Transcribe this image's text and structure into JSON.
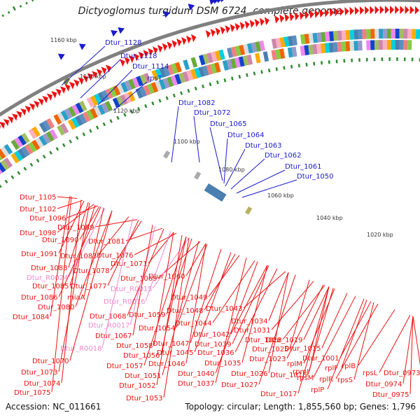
{
  "title": "Dictyoglomus turgidum DSM 6724, complete genome",
  "footer": {
    "accession": "Accession: NC_011661",
    "topology": "Topology: circular; Length: 1,855,560 bp; Genes: 1,796"
  },
  "colors": {
    "forward_label": "#1a1acc",
    "reverse_label": "#ee1111",
    "rna_label": "#ee88cc",
    "backbone": "#808080",
    "ticks": "#2e8b2e",
    "cds_reverse": "#ee1111",
    "cds_forward": "#1a1acc"
  },
  "scale_labels": [
    "1160 kbp",
    "1140 kbp",
    "1120 kbp",
    "1100 kbp",
    "1080 kbp",
    "1060 kbp",
    "1040 kbp",
    "1020 kbp"
  ],
  "forward_genes": [
    "Dtur_1128",
    "Dtur_1118",
    "Dtur_1114",
    "rpsT",
    "Dtur_1082",
    "Dtur_1072",
    "Dtur_1065",
    "Dtur_1064",
    "Dtur_1063",
    "Dtur_1062",
    "Dtur_1061",
    "Dtur_1050"
  ],
  "reverse_genes": [
    "Dtur_1105",
    "Dtur_1102",
    "Dtur_1096",
    "Dtur_1098",
    "Dtur_1089",
    "Dtur_1090",
    "Dtur_1091",
    "Dtur_1083",
    "Dtur_1081",
    "Dtur_1076",
    "Dtur_1088",
    "Dtur_1071",
    "Dtur_1078",
    "Dtur_R0024",
    "Dtur_1069",
    "Dtur_1060",
    "Dtur_1085",
    "Dtur_1077",
    "Dtur_R0015",
    "Dtur_1086",
    "miaA",
    "Dtur_R0016",
    "Dtur_1049",
    "Dtur_1080",
    "Dtur_1043",
    "Dtur_1084",
    "Dtur_1059",
    "Dtur_1048",
    "Dtur_1068",
    "Dtur_1044",
    "Dtur_1034",
    "Dtur_R0017",
    "Dtur_1054",
    "Dtur_1042",
    "Dtur_1031",
    "Dtur_1067",
    "Dtur_1019",
    "Dtur_1047",
    "Dtur_1039",
    "Dtur_1028",
    "Dtur_1058",
    "Dtur_1015",
    "Dtur_R0018",
    "Dtur_1045",
    "Dtur_1036",
    "Dtur_1025",
    "Dtur_1056",
    "Dtur_1001",
    "Dtur_1023",
    "Dtur_1070",
    "Dtur_1046",
    "Dtur_1035",
    "rplM",
    "rplB",
    "Dtur_1057",
    "rpmJ",
    "rplF",
    "rpsL",
    "Dtur_0973",
    "Dtur_1040",
    "Dtur_1026",
    "Dtur_1016",
    "Dtur_1073",
    "Dtur_1051",
    "rplR",
    "rpsS",
    "Dtur_0974",
    "Dtur_1037",
    "Dtur_1027",
    "rpsM",
    "Dtur_1074",
    "Dtur_1052",
    "Dtur_1017",
    "rplP",
    "Dtur_0975",
    "Dtur_1075",
    "Dtur_1053"
  ],
  "rna_genes": [
    "Dtur_R0024",
    "Dtur_R0015",
    "Dtur_R0016",
    "Dtur_R0017",
    "Dtur_R0018"
  ]
}
